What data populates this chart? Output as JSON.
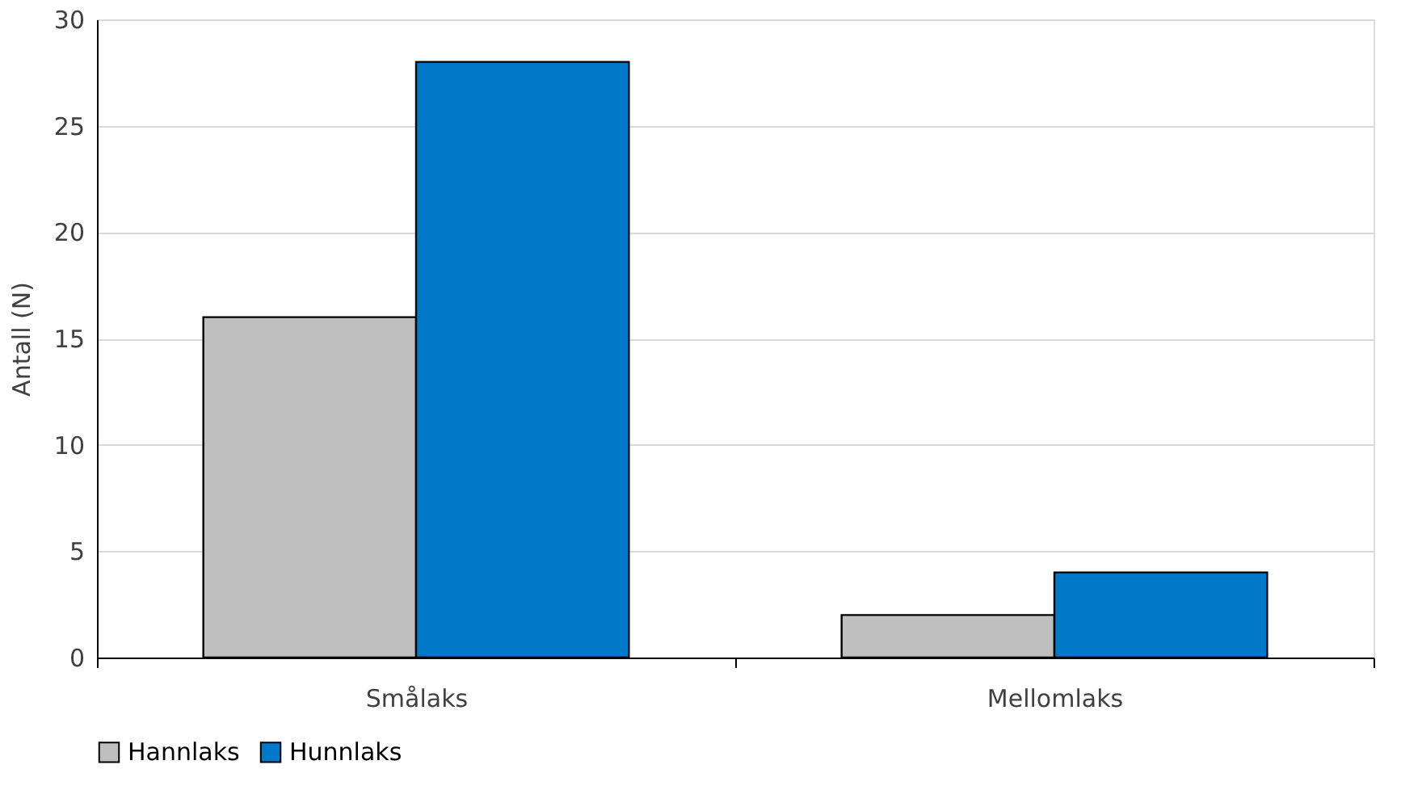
{
  "chart_data": {
    "type": "bar",
    "ylabel": "Antall (N)",
    "categories": [
      "Smålaks",
      "Mellomlaks"
    ],
    "series": [
      {
        "name": "Hannlaks",
        "color": "#bfbfbf",
        "values": [
          16,
          2
        ]
      },
      {
        "name": "Hunnlaks",
        "color": "#0079c8",
        "values": [
          28,
          4
        ]
      }
    ],
    "ylim": [
      0,
      30
    ],
    "yticks": [
      0,
      5,
      10,
      15,
      20,
      25,
      30
    ],
    "grid": "y",
    "legend": "bottom"
  }
}
